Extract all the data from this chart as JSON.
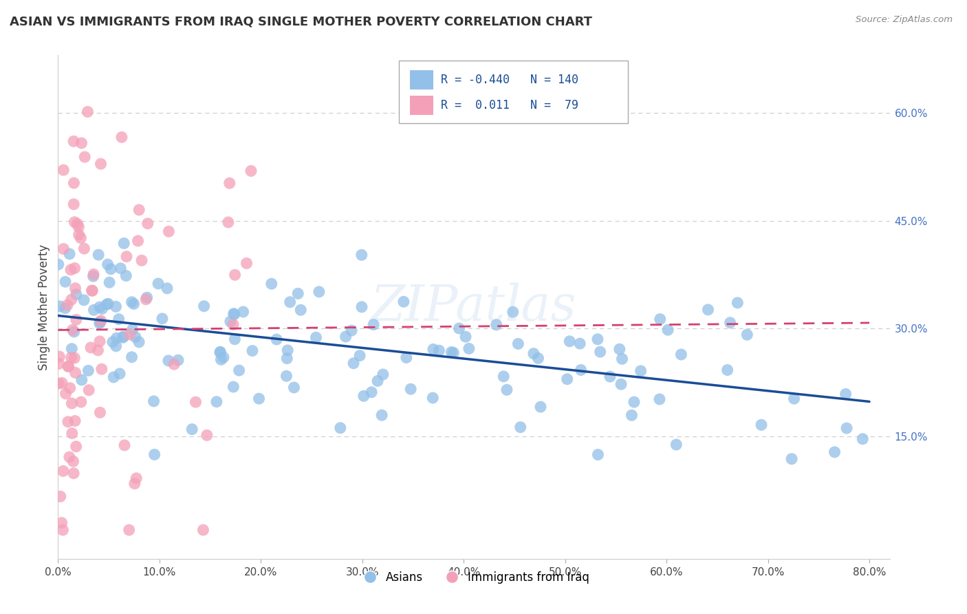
{
  "title": "ASIAN VS IMMIGRANTS FROM IRAQ SINGLE MOTHER POVERTY CORRELATION CHART",
  "source_text": "Source: ZipAtlas.com",
  "ylabel": "Single Mother Poverty",
  "xlim": [
    0.0,
    0.82
  ],
  "ylim": [
    -0.02,
    0.68
  ],
  "xticks": [
    0.0,
    0.1,
    0.2,
    0.3,
    0.4,
    0.5,
    0.6,
    0.7,
    0.8
  ],
  "xtick_labels": [
    "0.0%",
    "10.0%",
    "20.0%",
    "30.0%",
    "40.0%",
    "50.0%",
    "60.0%",
    "70.0%",
    "80.0%"
  ],
  "ytick_positions": [
    0.15,
    0.3,
    0.45,
    0.6
  ],
  "ytick_labels": [
    "15.0%",
    "30.0%",
    "45.0%",
    "60.0%"
  ],
  "legend_labels": [
    "Asians",
    "Immigrants from Iraq"
  ],
  "blue_color": "#92c0e8",
  "pink_color": "#f4a0b8",
  "blue_line_color": "#1a4d96",
  "pink_line_color": "#d44070",
  "R_blue": -0.44,
  "N_blue": 140,
  "R_pink": 0.011,
  "N_pink": 79,
  "background_color": "#ffffff",
  "watermark": "ZIPatlas",
  "grid_color": "#d0d0d0",
  "blue_scatter_seed": 42,
  "pink_scatter_seed": 99
}
